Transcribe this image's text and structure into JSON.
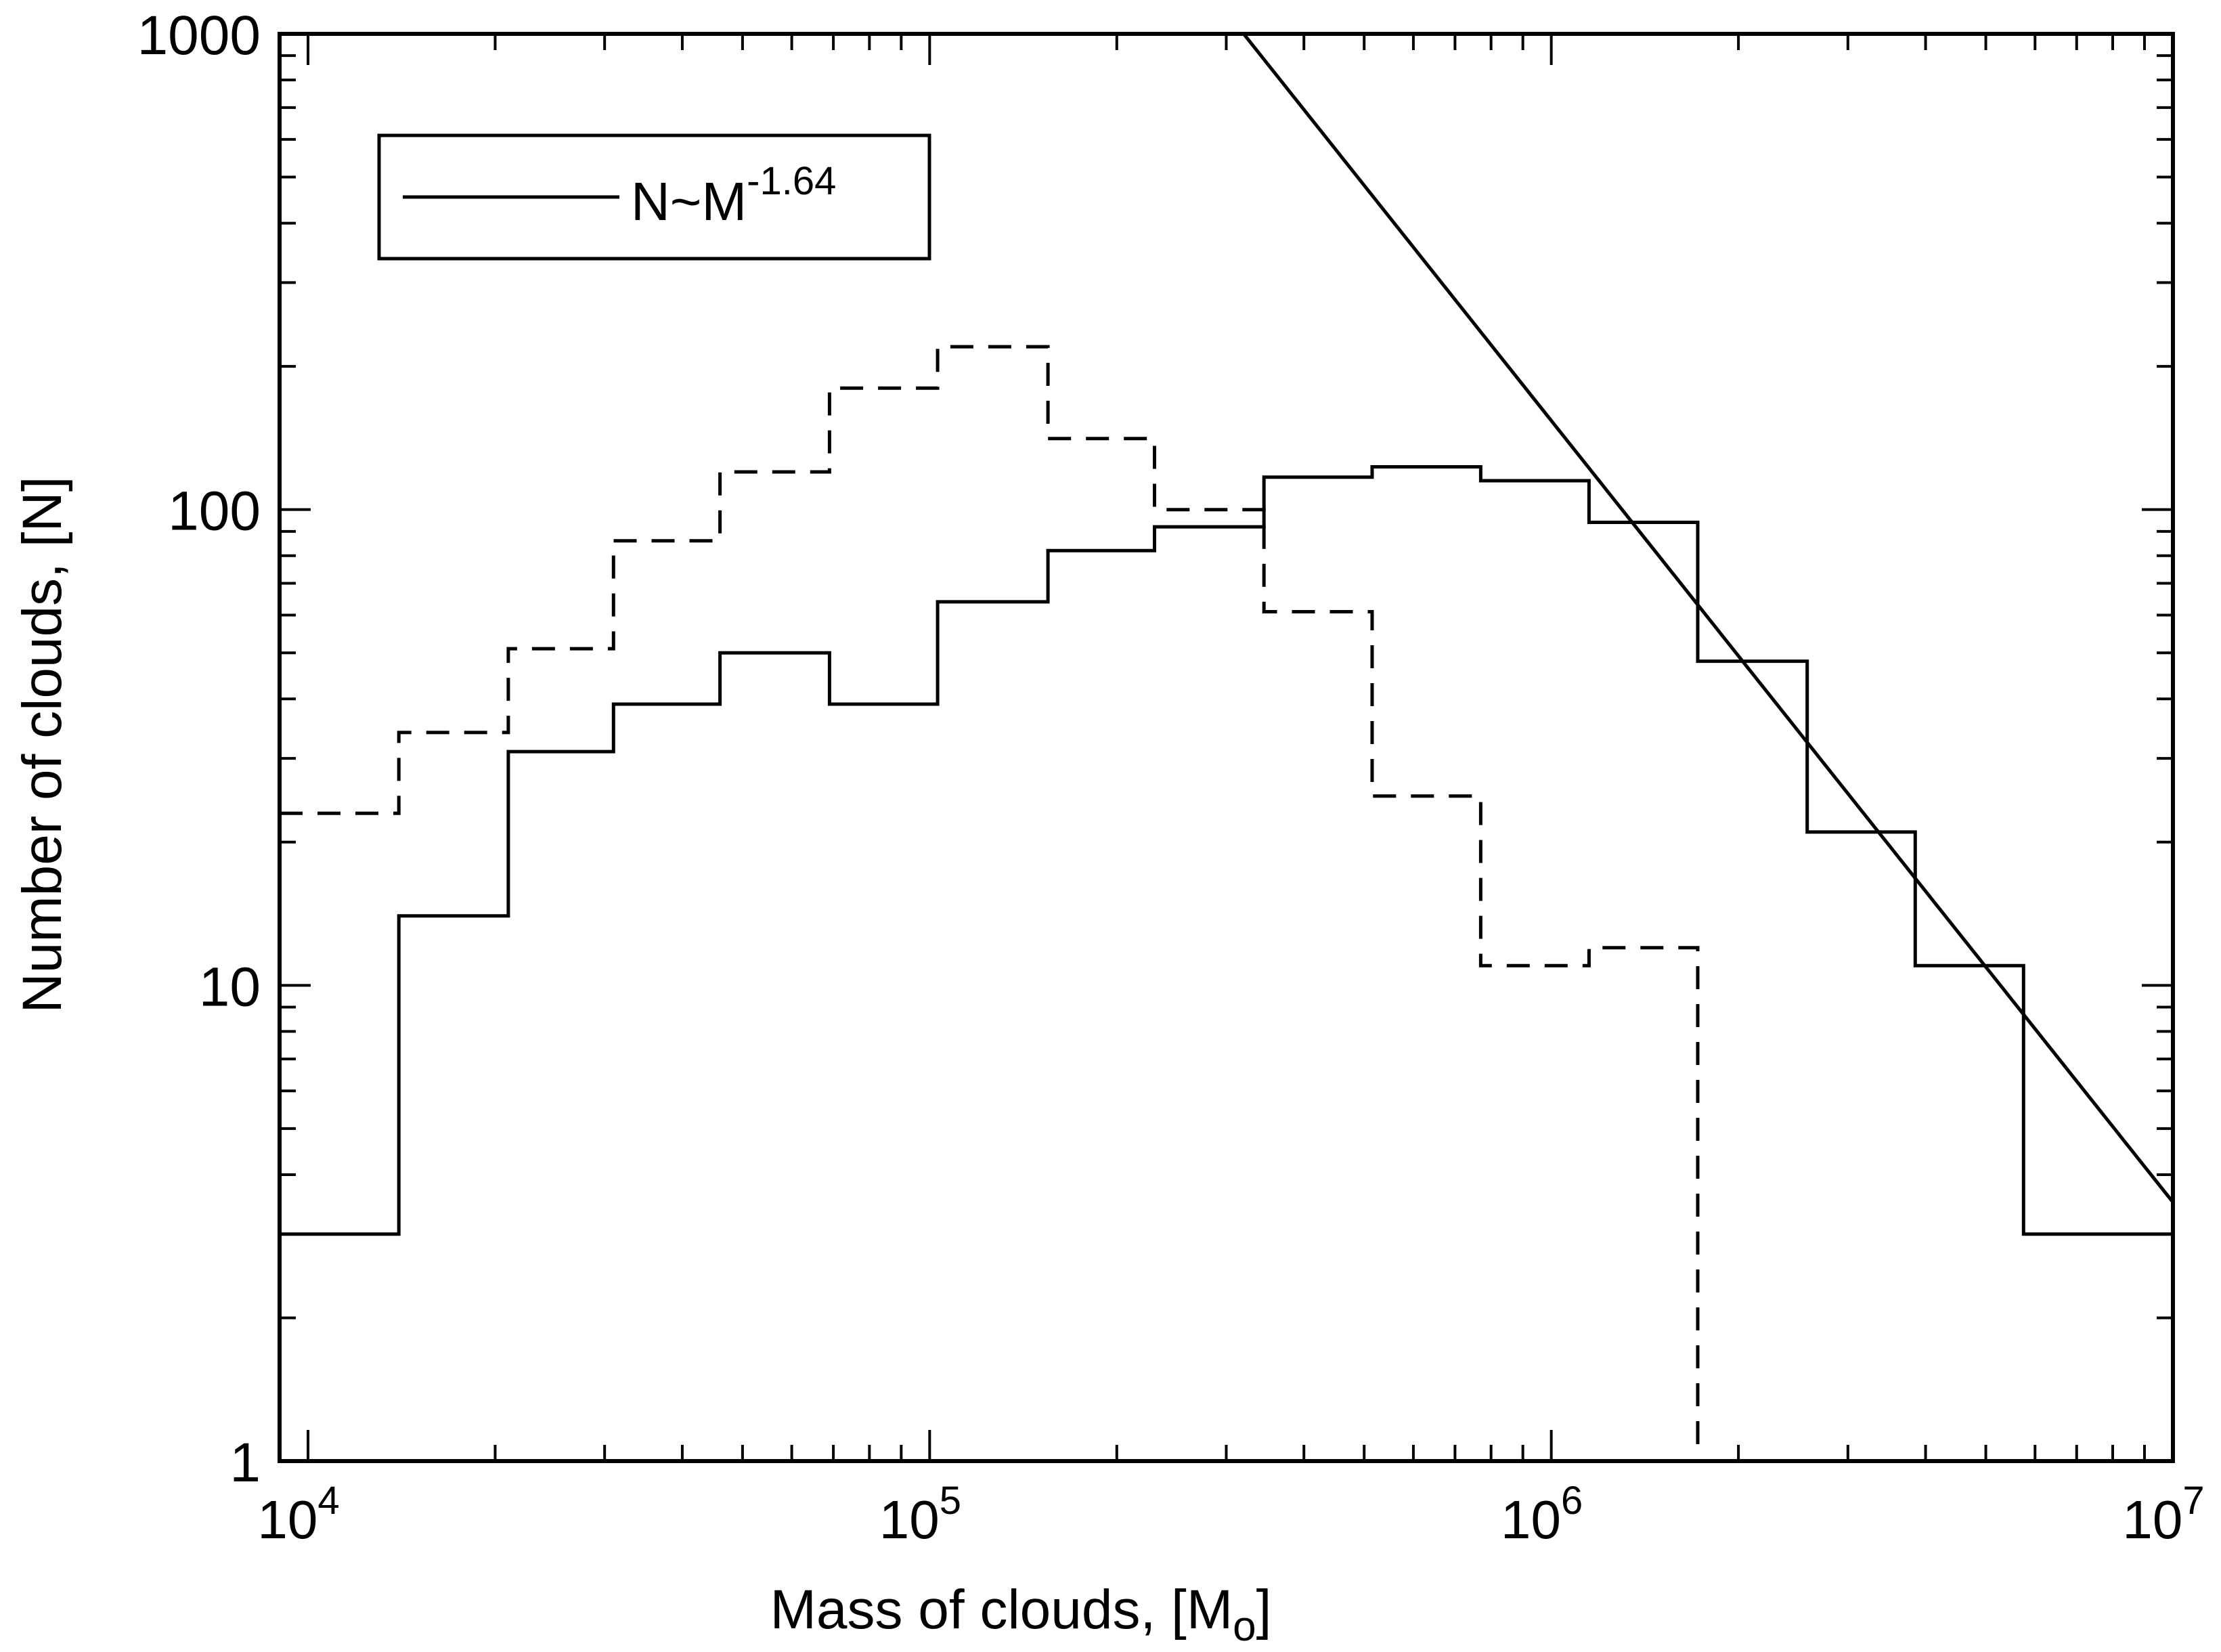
{
  "chart_data": {
    "type": "line",
    "xlabel": "Mass of clouds, [M",
    "xlabel_sub": "o",
    "xlabel_end": "]",
    "ylabel": "Number of clouds, [N]",
    "x_scale": "log",
    "y_scale": "log",
    "xlim": [
      9000,
      10000000
    ],
    "ylim": [
      1,
      1000
    ],
    "grid": false,
    "legend_position": "top-left",
    "x_ticks": [
      {
        "value": 10000,
        "base": "10",
        "exp": "4"
      },
      {
        "value": 100000,
        "base": "10",
        "exp": "5"
      },
      {
        "value": 1000000,
        "base": "10",
        "exp": "6"
      },
      {
        "value": 10000000,
        "base": "10",
        "exp": "7"
      }
    ],
    "y_ticks": [
      {
        "value": 1,
        "label": "1"
      },
      {
        "value": 10,
        "label": "10"
      },
      {
        "value": 100,
        "label": "100"
      },
      {
        "value": 1000,
        "label": "1000"
      }
    ],
    "series": [
      {
        "style": "solid-step",
        "bin_edges": [
          9000,
          14000,
          21000,
          31000,
          46000,
          69000,
          103000,
          155000,
          230000,
          345000,
          515000,
          770000,
          1150000,
          1720000,
          2580000,
          3850000,
          5750000,
          10000000
        ],
        "values": [
          3,
          14,
          31,
          39,
          50,
          39,
          64,
          82,
          92,
          117,
          123,
          115,
          94,
          48,
          21,
          11,
          3
        ]
      },
      {
        "style": "dashed-step",
        "bin_edges": [
          9000,
          14000,
          21000,
          31000,
          46000,
          69000,
          103000,
          155000,
          230000,
          345000,
          515000,
          770000,
          1150000,
          1720000
        ],
        "values": [
          23,
          34,
          51,
          86,
          120,
          180,
          220,
          141,
          100,
          61,
          25,
          11,
          12
        ]
      },
      {
        "name": "N~M",
        "name_sup": "-1.64",
        "style": "solid-line",
        "x": [
          320000,
          10000000
        ],
        "y": [
          1000,
          3.5
        ]
      }
    ]
  }
}
